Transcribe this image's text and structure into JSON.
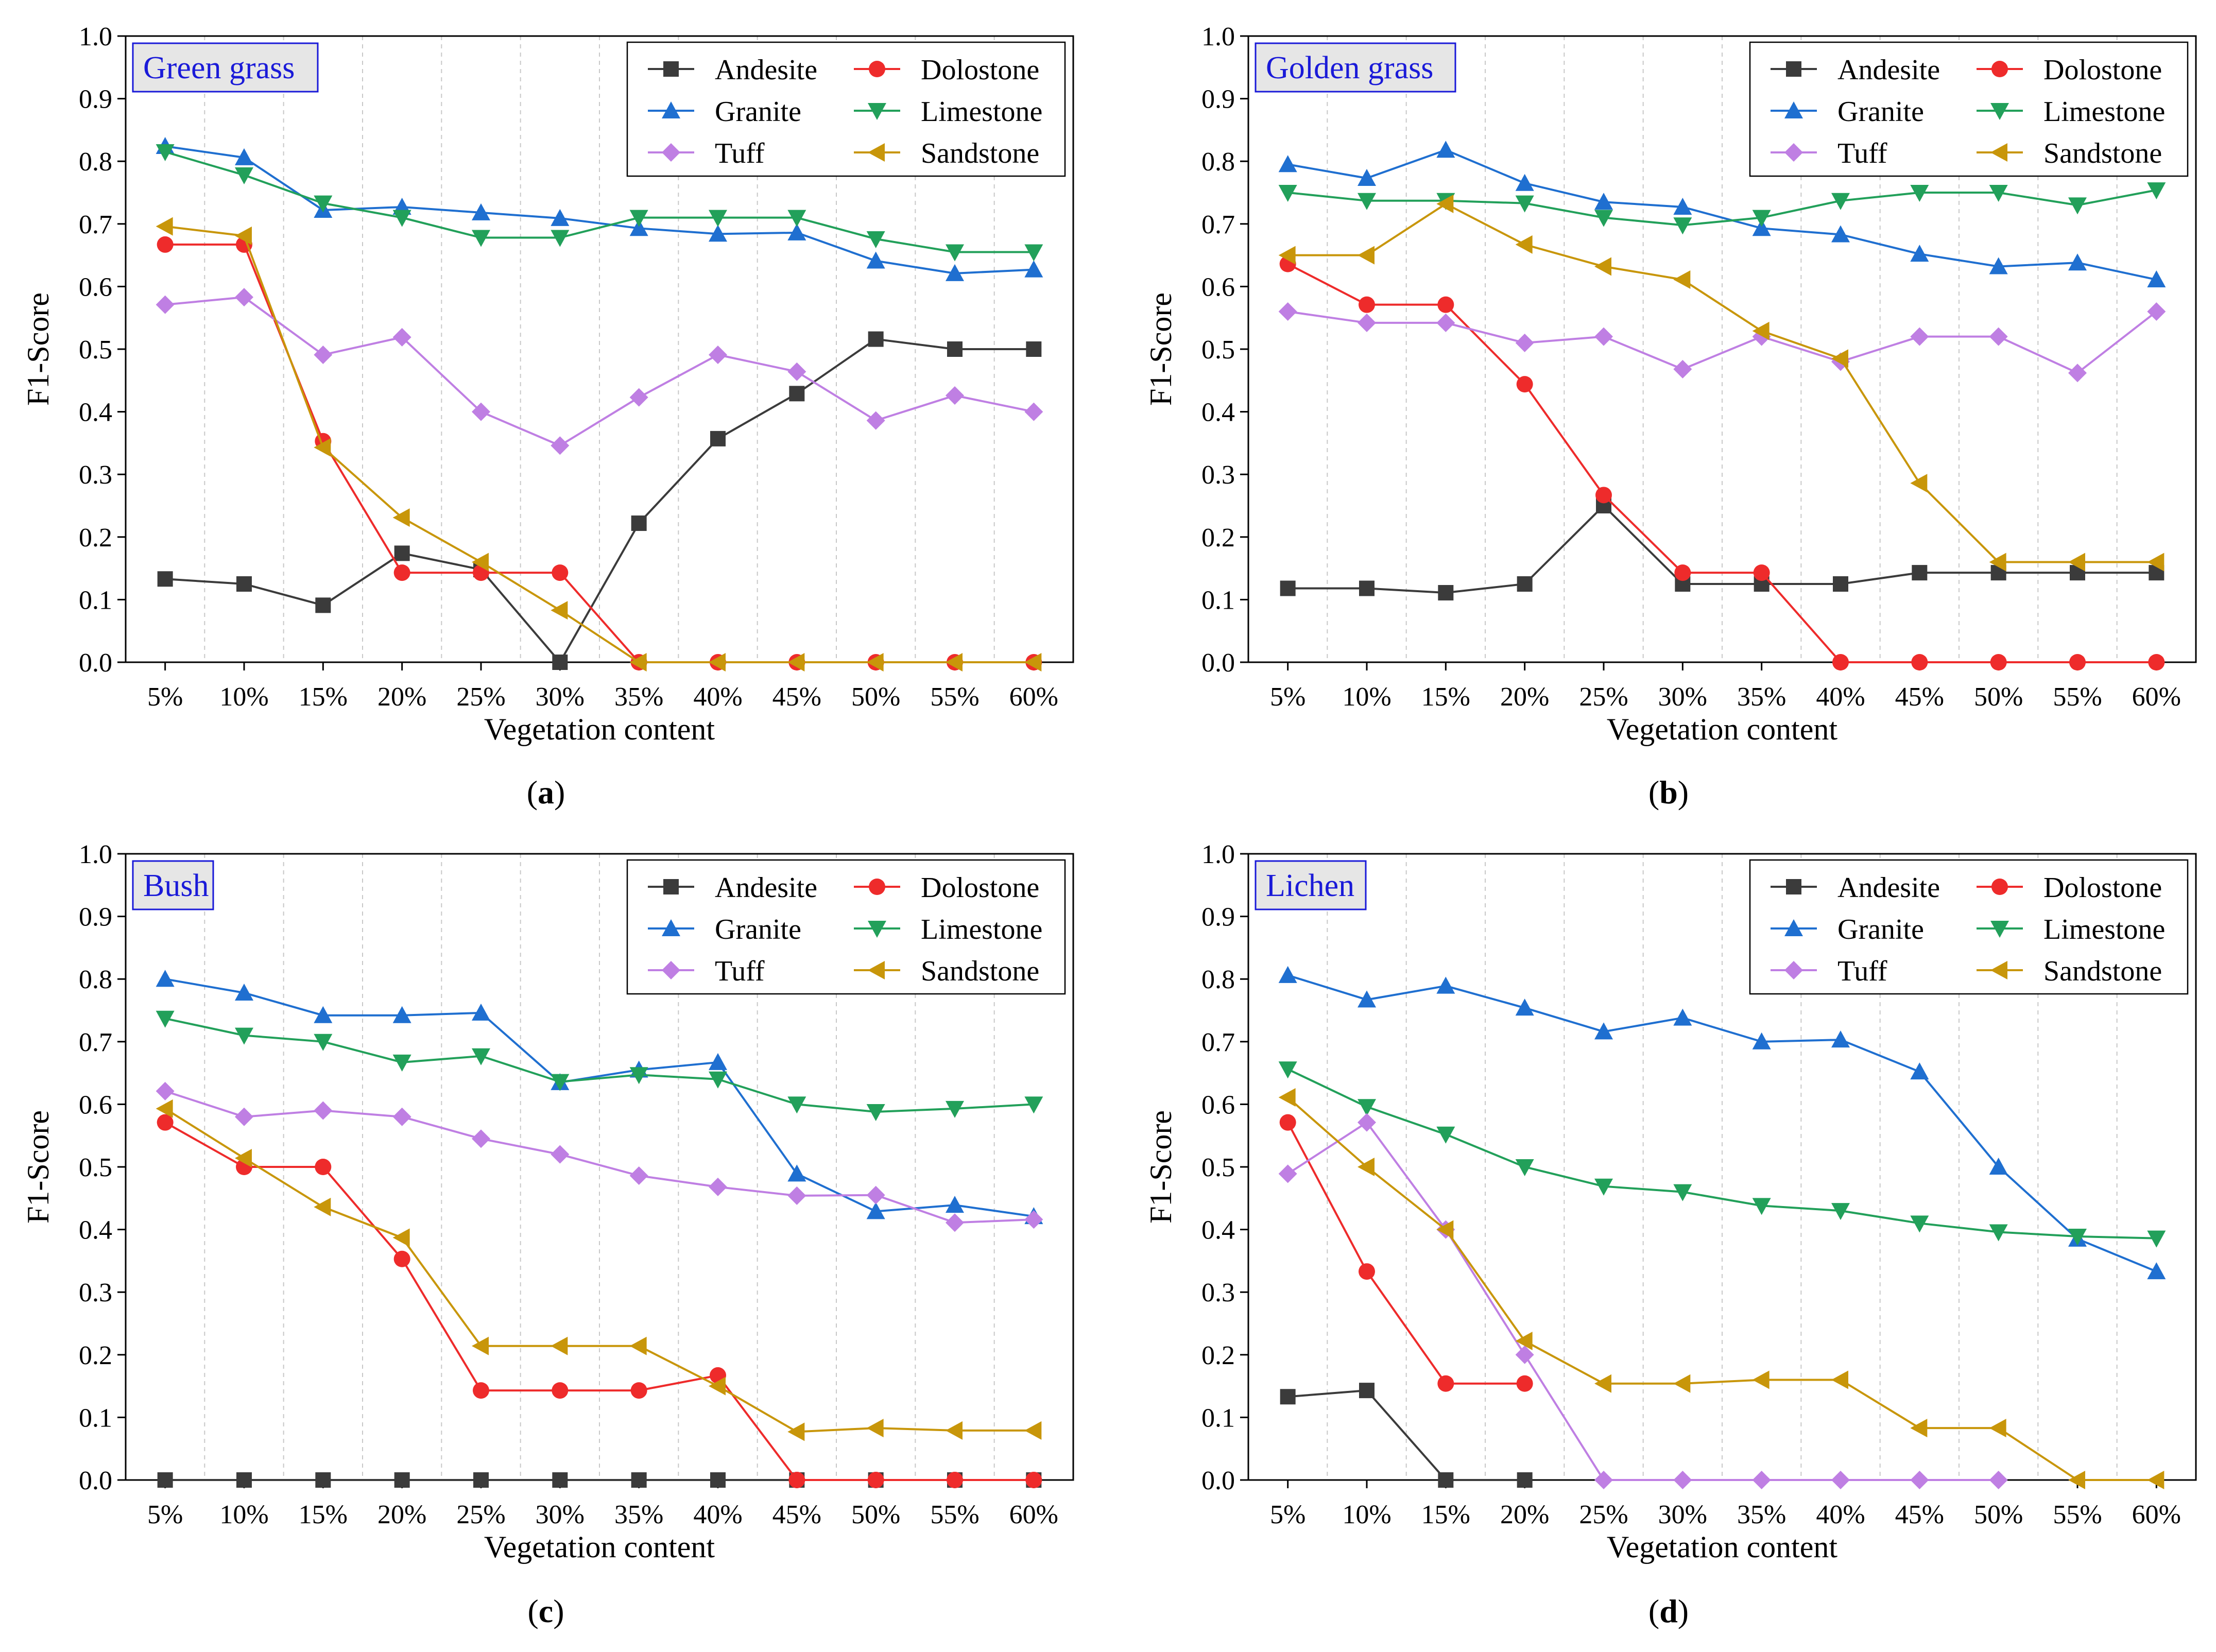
{
  "figure": {
    "x_label": "Vegetation content",
    "y_label": "F1-Score"
  },
  "colors": {
    "Andesite": "#3b3b3b",
    "Dolostone": "#ee2b2b",
    "Granite": "#1f6fd0",
    "Limestone": "#22a05a",
    "Tuff": "#bf7fe3",
    "Sandstone": "#c8960a",
    "tag_border": "#1a1ad8",
    "tag_fill": "#e6e6e6",
    "tag_text": "#1a1ad8"
  },
  "chart_data": [
    {
      "type": "line",
      "panel_label": "a",
      "title": "Green grass",
      "xlabel": "Vegetation content",
      "ylabel": "F1-Score",
      "ylim": [
        0,
        1.0
      ],
      "yticks": [
        "0.0",
        "0.1",
        "0.2",
        "0.3",
        "0.4",
        "0.5",
        "0.6",
        "0.7",
        "0.8",
        "0.9",
        "1.0"
      ],
      "categories": [
        "5%",
        "10%",
        "15%",
        "20%",
        "25%",
        "30%",
        "35%",
        "40%",
        "45%",
        "50%",
        "55%",
        "60%"
      ],
      "legend_position": "top-right",
      "series": [
        {
          "name": "Andesite",
          "marker": "square",
          "values": [
            0.133,
            0.125,
            0.091,
            0.174,
            0.148,
            0.0,
            0.222,
            0.357,
            0.429,
            0.516,
            0.5,
            0.5
          ]
        },
        {
          "name": "Dolostone",
          "marker": "circle",
          "values": [
            0.667,
            0.667,
            0.353,
            0.143,
            0.143,
            0.143,
            0.0,
            0.0,
            0.0,
            0.0,
            0.0,
            0.0
          ]
        },
        {
          "name": "Granite",
          "marker": "triangle-up",
          "values": [
            0.824,
            0.806,
            0.722,
            0.727,
            0.718,
            0.709,
            0.693,
            0.684,
            0.686,
            0.641,
            0.621,
            0.627
          ]
        },
        {
          "name": "Limestone",
          "marker": "triangle-down",
          "values": [
            0.815,
            0.778,
            0.733,
            0.71,
            0.678,
            0.678,
            0.71,
            0.71,
            0.71,
            0.676,
            0.655,
            0.655
          ]
        },
        {
          "name": "Tuff",
          "marker": "diamond",
          "values": [
            0.571,
            0.583,
            0.491,
            0.519,
            0.4,
            0.346,
            0.423,
            0.491,
            0.464,
            0.386,
            0.426,
            0.4
          ]
        },
        {
          "name": "Sandstone",
          "marker": "triangle-left",
          "values": [
            0.696,
            0.681,
            0.343,
            0.231,
            0.16,
            0.083,
            0.0,
            0.0,
            0.0,
            0.0,
            0.0,
            0.0
          ]
        }
      ]
    },
    {
      "type": "line",
      "panel_label": "b",
      "title": "Golden grass",
      "xlabel": "Vegetation content",
      "ylabel": "F1-Score",
      "ylim": [
        0,
        1.0
      ],
      "yticks": [
        "0.0",
        "0.1",
        "0.2",
        "0.3",
        "0.4",
        "0.5",
        "0.6",
        "0.7",
        "0.8",
        "0.9",
        "1.0"
      ],
      "categories": [
        "5%",
        "10%",
        "15%",
        "20%",
        "25%",
        "30%",
        "35%",
        "40%",
        "45%",
        "50%",
        "55%",
        "60%"
      ],
      "legend_position": "top-right",
      "series": [
        {
          "name": "Andesite",
          "marker": "square",
          "values": [
            0.118,
            0.118,
            0.111,
            0.125,
            0.25,
            0.125,
            0.125,
            0.125,
            0.143,
            0.143,
            0.143,
            0.143
          ]
        },
        {
          "name": "Dolostone",
          "marker": "circle",
          "values": [
            0.636,
            0.571,
            0.571,
            0.444,
            0.267,
            0.143,
            0.143,
            0.0,
            0.0,
            0.0,
            0.0,
            0.0
          ]
        },
        {
          "name": "Granite",
          "marker": "triangle-up",
          "values": [
            0.795,
            0.773,
            0.818,
            0.765,
            0.735,
            0.727,
            0.693,
            0.683,
            0.652,
            0.632,
            0.638,
            0.611
          ]
        },
        {
          "name": "Limestone",
          "marker": "triangle-down",
          "values": [
            0.75,
            0.737,
            0.737,
            0.733,
            0.71,
            0.698,
            0.71,
            0.737,
            0.75,
            0.75,
            0.73,
            0.754
          ]
        },
        {
          "name": "Tuff",
          "marker": "diamond",
          "values": [
            0.56,
            0.542,
            0.542,
            0.51,
            0.52,
            0.468,
            0.52,
            0.48,
            0.52,
            0.52,
            0.462,
            0.56
          ]
        },
        {
          "name": "Sandstone",
          "marker": "triangle-left",
          "values": [
            0.65,
            0.65,
            0.732,
            0.667,
            0.632,
            0.611,
            0.529,
            0.485,
            0.286,
            0.16,
            0.16,
            0.16
          ]
        }
      ]
    },
    {
      "type": "line",
      "panel_label": "c",
      "title": "Bush",
      "xlabel": "Vegetation content",
      "ylabel": "F1-Score",
      "ylim": [
        0,
        1.0
      ],
      "yticks": [
        "0.0",
        "0.1",
        "0.2",
        "0.3",
        "0.4",
        "0.5",
        "0.6",
        "0.7",
        "0.8",
        "0.9",
        "1.0"
      ],
      "categories": [
        "5%",
        "10%",
        "15%",
        "20%",
        "25%",
        "30%",
        "35%",
        "40%",
        "45%",
        "50%",
        "55%",
        "60%"
      ],
      "legend_position": "top-right",
      "series": [
        {
          "name": "Andesite",
          "marker": "square",
          "values": [
            0.0,
            0.0,
            0.0,
            0.0,
            0.0,
            0.0,
            0.0,
            0.0,
            0.0,
            0.0,
            0.0,
            0.0
          ]
        },
        {
          "name": "Dolostone",
          "marker": "circle",
          "values": [
            0.571,
            0.5,
            0.5,
            0.353,
            0.143,
            0.143,
            0.143,
            0.167,
            0.0,
            0.0,
            0.0,
            0.0
          ]
        },
        {
          "name": "Granite",
          "marker": "triangle-up",
          "values": [
            0.8,
            0.778,
            0.742,
            0.742,
            0.746,
            0.635,
            0.655,
            0.667,
            0.489,
            0.429,
            0.439,
            0.421
          ]
        },
        {
          "name": "Limestone",
          "marker": "triangle-down",
          "values": [
            0.737,
            0.71,
            0.7,
            0.667,
            0.677,
            0.636,
            0.647,
            0.64,
            0.6,
            0.588,
            0.593,
            0.6
          ]
        },
        {
          "name": "Tuff",
          "marker": "diamond",
          "values": [
            0.621,
            0.58,
            0.59,
            0.58,
            0.545,
            0.52,
            0.486,
            0.468,
            0.454,
            0.455,
            0.411,
            0.416
          ]
        },
        {
          "name": "Sandstone",
          "marker": "triangle-left",
          "values": [
            0.593,
            0.514,
            0.436,
            0.387,
            0.214,
            0.214,
            0.214,
            0.15,
            0.077,
            0.083,
            0.079,
            0.079
          ]
        }
      ]
    },
    {
      "type": "line",
      "panel_label": "d",
      "title": "Lichen",
      "xlabel": "Vegetation content",
      "ylabel": "F1-Score",
      "ylim": [
        0,
        1.0
      ],
      "yticks": [
        "0.0",
        "0.1",
        "0.2",
        "0.3",
        "0.4",
        "0.5",
        "0.6",
        "0.7",
        "0.8",
        "0.9",
        "1.0"
      ],
      "categories": [
        "5%",
        "10%",
        "15%",
        "20%",
        "25%",
        "30%",
        "35%",
        "40%",
        "45%",
        "50%",
        "55%",
        "60%"
      ],
      "legend_position": "top-right",
      "series": [
        {
          "name": "Andesite",
          "marker": "square",
          "values": [
            0.133,
            0.143,
            0.0,
            0.0,
            null,
            null,
            null,
            null,
            null,
            null,
            null,
            null
          ]
        },
        {
          "name": "Dolostone",
          "marker": "circle",
          "values": [
            0.571,
            0.333,
            0.154,
            0.154,
            null,
            null,
            null,
            null,
            null,
            null,
            null,
            null
          ]
        },
        {
          "name": "Granite",
          "marker": "triangle-up",
          "values": [
            0.806,
            0.767,
            0.789,
            0.754,
            0.716,
            0.738,
            0.7,
            0.703,
            0.652,
            0.5,
            0.385,
            0.333
          ]
        },
        {
          "name": "Limestone",
          "marker": "triangle-down",
          "values": [
            0.656,
            0.596,
            0.552,
            0.5,
            0.469,
            0.46,
            0.438,
            0.43,
            0.41,
            0.396,
            0.389,
            0.386
          ]
        },
        {
          "name": "Tuff",
          "marker": "diamond",
          "values": [
            0.489,
            0.571,
            0.4,
            0.2,
            0.0,
            0.0,
            0.0,
            0.0,
            0.0,
            0.0,
            null,
            null
          ]
        },
        {
          "name": "Sandstone",
          "marker": "triangle-left",
          "values": [
            0.611,
            0.5,
            0.4,
            0.222,
            0.154,
            0.154,
            0.16,
            0.16,
            0.083,
            0.083,
            0.0,
            0.0
          ]
        }
      ]
    }
  ]
}
